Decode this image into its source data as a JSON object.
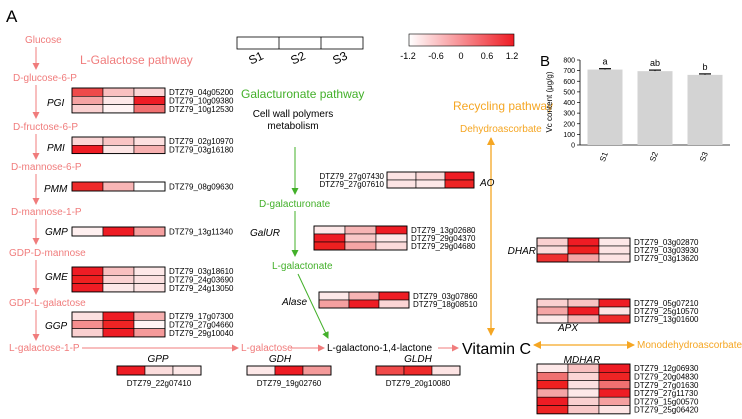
{
  "panel_a": {
    "label": "A"
  },
  "panel_b": {
    "label": "B"
  },
  "samples": [
    "S1",
    "S2",
    "S3"
  ],
  "colorbar": {
    "ticks": [
      "-1.2",
      "-0.6",
      "0",
      "0.6",
      "1.2"
    ],
    "low": "#ffffff",
    "high": "#ee1c24"
  },
  "pathways": {
    "l_galactose": {
      "title": "L-Galactose pathway",
      "color": "#f07c7c"
    },
    "galacturonate": {
      "title": "Galacturonate pathway",
      "color": "#43b02a"
    },
    "recycling": {
      "title": "Recycling pathway",
      "color": "#f5a623"
    }
  },
  "metabolites": {
    "glucose": "Glucose",
    "glucose6p": "D-glucose-6-P",
    "fructose6p": "D-fructose-6-P",
    "mannose6p": "D-mannose-6-P",
    "mannose1p": "D-mannose-1-P",
    "gdp_mannose": "GDP-D-mannose",
    "gdp_galactose": "GDP-L-galactose",
    "galactose1p": "L-galactose-1-P",
    "l_galactose": "L-galactose",
    "galactonolactone": "L-galactono-1,4-lactone",
    "vitamin_c": "Vitamin C",
    "cell_wall": "Cell wall polymers metabolism",
    "d_galacturonate": "D-galacturonate",
    "l_galactonate": "L-galactonate",
    "dehydroascorbate": "Dehydroascorbate",
    "monodehydroascorbate": "Monodehydroascorbate"
  },
  "enzymes": {
    "PGI": "PGI",
    "PMI": "PMI",
    "PMM": "PMM",
    "GMP": "GMP",
    "GME": "GME",
    "GGP": "GGP",
    "GPP": "GPP",
    "GDH": "GDH",
    "GLDH": "GLDH",
    "AO": "AO",
    "GalUR": "GalUR",
    "Alase": "Alase",
    "DHAR": "DHAR",
    "APX": "APX",
    "MDHAR": "MDHAR"
  },
  "heatmaps": [
    {
      "enzyme": "PGI",
      "genes": [
        "DTZ79_04g05200",
        "DTZ79_10g09380",
        "DTZ79_10g12530"
      ],
      "colors": [
        [
          "#ee4a4a",
          "#f9c0c0",
          "#fbd5d5"
        ],
        [
          "#f5a3a3",
          "#fde8e8",
          "#ee1c24"
        ],
        [
          "#fad0d0",
          "#fff4f4",
          "#f07070"
        ]
      ]
    },
    {
      "enzyme": "PMI",
      "genes": [
        "DTZ79_02g10970",
        "DTZ79_03g16180"
      ],
      "colors": [
        [
          "#fbd5d5",
          "#f9c4c4",
          "#fde0e0"
        ],
        [
          "#ee1c24",
          "#fce4e4",
          "#f7b0b0"
        ]
      ]
    },
    {
      "enzyme": "PMM",
      "genes": [
        "DTZ79_08g09630"
      ],
      "colors": [
        [
          "#ee2a2a",
          "#f8b5b5",
          "#ffffff"
        ]
      ]
    },
    {
      "enzyme": "GMP",
      "genes": [
        "DTZ79_13g11340"
      ],
      "colors": [
        [
          "#fff0f0",
          "#ee1c24",
          "#f5a0a0"
        ]
      ]
    },
    {
      "enzyme": "GME",
      "genes": [
        "DTZ79_03g18610",
        "DTZ79_24g03690",
        "DTZ79_24g13050"
      ],
      "colors": [
        [
          "#ee1c24",
          "#f8c0c0",
          "#fde8e8"
        ],
        [
          "#ee2020",
          "#fad2d2",
          "#fbe0e0"
        ],
        [
          "#ee1c24",
          "#fce8e8",
          "#fde4e4"
        ]
      ]
    },
    {
      "enzyme": "GGP",
      "genes": [
        "DTZ79_17g07300",
        "DTZ79_27g04660",
        "DTZ79_29g10040"
      ],
      "colors": [
        [
          "#fce0e0",
          "#ee1c24",
          "#f7b0b0"
        ],
        [
          "#f58e8e",
          "#ee2424",
          "#fff4f4"
        ],
        [
          "#fad0d0",
          "#ee1c24",
          "#f59a9a"
        ]
      ]
    },
    {
      "enzyme": "GPP",
      "genes": [
        "DTZ79_22g07410"
      ],
      "colors": [
        [
          "#ee1c24",
          "#fbdcdc",
          "#fde8e8"
        ]
      ]
    },
    {
      "enzyme": "GDH",
      "genes": [
        "DTZ79_19g02760"
      ],
      "colors": [
        [
          "#fde8e8",
          "#ee1c24",
          "#f49a9a"
        ]
      ]
    },
    {
      "enzyme": "GLDH",
      "genes": [
        "DTZ79_20g10080"
      ],
      "colors": [
        [
          "#f04a4a",
          "#ee2a2a",
          "#fde4e4"
        ]
      ]
    },
    {
      "enzyme": "AO",
      "genes": [
        "DTZ79_27g07430",
        "DTZ79_27g07610"
      ],
      "colors": [
        [
          "#fde4e4",
          "#fbd8d8",
          "#ee1c24"
        ],
        [
          "#fce4e4",
          "#fde8e8",
          "#ee2424"
        ]
      ]
    },
    {
      "enzyme": "GalUR",
      "genes": [
        "DTZ79_13g02680",
        "DTZ79_29g04370",
        "DTZ79_29g04680"
      ],
      "colors": [
        [
          "#fde8e8",
          "#f7b5b5",
          "#ee1c24"
        ],
        [
          "#ee1c24",
          "#f9c8c8",
          "#fde8e8"
        ],
        [
          "#ee2020",
          "#f5a5a5",
          "#fbdada"
        ]
      ]
    },
    {
      "enzyme": "Alase",
      "genes": [
        "DTZ79_03g07860",
        "DTZ79_18g08510"
      ],
      "colors": [
        [
          "#fde8e8",
          "#f7b5b5",
          "#ee1c24"
        ],
        [
          "#f5a0a0",
          "#ee1c24",
          "#fbd5d5"
        ]
      ]
    },
    {
      "enzyme": "DHAR",
      "genes": [
        "DTZ79_03g02870",
        "DTZ79_03g03930",
        "DTZ79_03g13620"
      ],
      "colors": [
        [
          "#fad0d0",
          "#ee1c24",
          "#fde8e8"
        ],
        [
          "#fbdcdc",
          "#ee2020",
          "#fce4e4"
        ],
        [
          "#ee3030",
          "#f5a5a5",
          "#fde4e4"
        ]
      ]
    },
    {
      "enzyme": "APX",
      "genes": [
        "DTZ79_05g07210",
        "DTZ79_25g10570",
        "DTZ79_13g01600"
      ],
      "colors": [
        [
          "#fad0d0",
          "#f8c4c4",
          "#ee1c24"
        ],
        [
          "#f5a5a5",
          "#ee1c24",
          "#fde4e4"
        ],
        [
          "#fde8e8",
          "#f7b5b5",
          "#ee2a2a"
        ]
      ]
    },
    {
      "enzyme": "MDHAR",
      "genes": [
        "DTZ79_12g06930",
        "DTZ79_20g04830",
        "DTZ79_27g01630",
        "DTZ79_27g11730",
        "DTZ79_15g00570",
        "DTZ79_25g06420"
      ],
      "colors": [
        [
          "#fde8e8",
          "#f8c0c0",
          "#ee1c24"
        ],
        [
          "#f07070",
          "#fbd5d5",
          "#ee2424"
        ],
        [
          "#ee2020",
          "#fce0e0",
          "#f07070"
        ],
        [
          "#f5a5a5",
          "#fde8e8",
          "#ee1c24"
        ],
        [
          "#ee1c24",
          "#fad0d0",
          "#f5a0a0"
        ],
        [
          "#ee2424",
          "#f9c8c8",
          "#fde4e4"
        ]
      ]
    }
  ],
  "chart_data": {
    "type": "bar",
    "categories": [
      "S1",
      "S2",
      "S3"
    ],
    "values": [
      710,
      695,
      660
    ],
    "errors": [
      8,
      10,
      9
    ],
    "significance": [
      "a",
      "ab",
      "b"
    ],
    "ylabel": "Vc content (μg/g)",
    "ylim": [
      0,
      800
    ],
    "yticks": [
      0,
      100,
      200,
      300,
      400,
      500,
      600,
      700,
      800
    ],
    "bar_color": "#d3d3d3"
  }
}
